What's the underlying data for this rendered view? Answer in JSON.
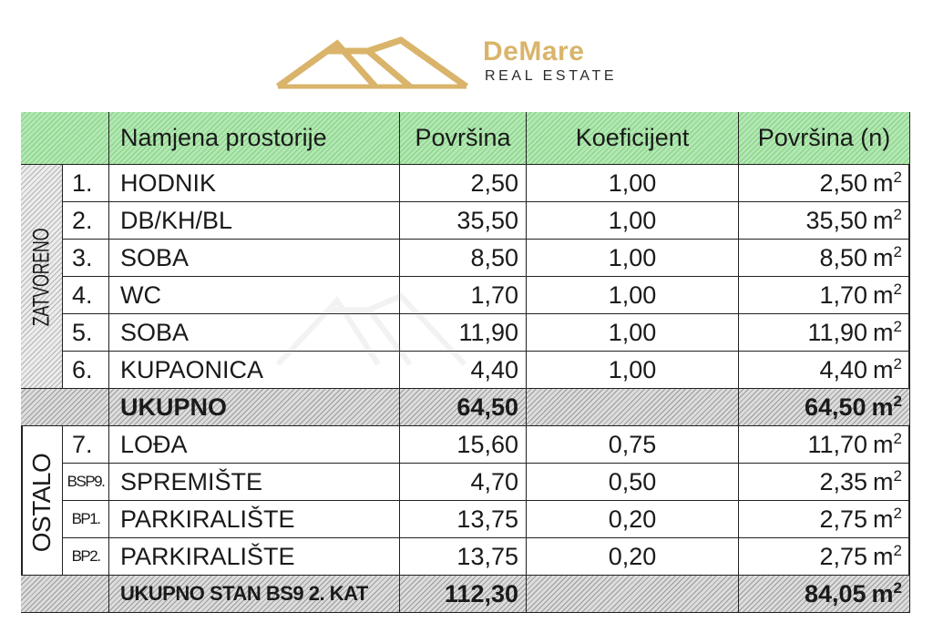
{
  "logo": {
    "brand": "DeMare",
    "subtitle": "REAL ESTATE",
    "color": "#d9b46a",
    "icon": "house-roof-icon"
  },
  "table": {
    "headers": [
      "",
      "Namjena prostorije",
      "Površina",
      "Koeficijent",
      "Površina (n)"
    ],
    "group_closed": "ZATVORENO",
    "group_other": "OSTALO",
    "unit": "m",
    "unit_exp": "2",
    "rows_closed": [
      {
        "no": "1.",
        "name": "HODNIK",
        "area": "2,50",
        "coef": "1,00",
        "net": "2,50"
      },
      {
        "no": "2.",
        "name": "DB/KH/BL",
        "area": "35,50",
        "coef": "1,00",
        "net": "35,50"
      },
      {
        "no": "3.",
        "name": "SOBA",
        "area": "8,50",
        "coef": "1,00",
        "net": "8,50"
      },
      {
        "no": "4.",
        "name": "WC",
        "area": "1,70",
        "coef": "1,00",
        "net": "1,70"
      },
      {
        "no": "5.",
        "name": "SOBA",
        "area": "11,90",
        "coef": "1,00",
        "net": "11,90"
      },
      {
        "no": "6.",
        "name": "KUPAONICA",
        "area": "4,40",
        "coef": "1,00",
        "net": "4,40"
      }
    ],
    "subtotal": {
      "label": "UKUPNO",
      "area": "64,50",
      "net": "64,50"
    },
    "rows_other": [
      {
        "no": "7.",
        "name": "LOĐA",
        "area": "15,60",
        "coef": "0,75",
        "net": "11,70"
      },
      {
        "no": "BSP9.",
        "name": "SPREMIŠTE",
        "area": "4,70",
        "coef": "0,50",
        "net": "2,35"
      },
      {
        "no": "BP1.",
        "name": "PARKIRALIŠTE",
        "area": "13,75",
        "coef": "0,20",
        "net": "2,75"
      },
      {
        "no": "BP2.",
        "name": "PARKIRALIŠTE",
        "area": "13,75",
        "coef": "0,20",
        "net": "2,75"
      }
    ],
    "total": {
      "label": "UKUPNO STAN BS9 2. KAT",
      "area": "112,30",
      "net": "84,05"
    }
  }
}
